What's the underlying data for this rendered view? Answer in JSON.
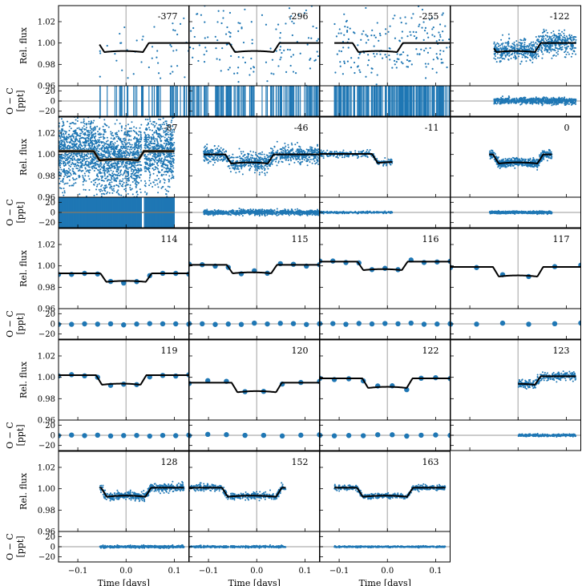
{
  "figure": {
    "x_axis_label": "Time [days]",
    "flux_axis_label": "Rel. flux",
    "resid_axis_label_line1": "O − C",
    "resid_axis_label_line2": "[ppt]",
    "colors": {
      "data": "#1f77b4",
      "model": "#000000",
      "refline": "#bbbbbb",
      "frame": "#000000"
    }
  },
  "chart_data": {
    "type": "scatter",
    "xlabel": "Time [days]",
    "ylabel_flux": "Rel. flux",
    "ylabel_resid": "O − C [ppt]",
    "xlim": [
      -0.14,
      0.13
    ],
    "ylim_flux": [
      0.96,
      1.035
    ],
    "ylim_resid": [
      -30,
      30
    ],
    "x_ticks": [
      -0.1,
      0.0,
      0.1
    ],
    "x_tick_labels": [
      "−0.1",
      "0.0",
      "0.1"
    ],
    "flux_ticks": [
      0.96,
      0.98,
      1.0,
      1.02
    ],
    "flux_tick_labels": [
      "0.96",
      "0.98",
      "1.00",
      "1.02"
    ],
    "resid_ticks": [
      -20,
      0,
      20
    ],
    "resid_tick_labels": [
      "−20",
      "0",
      "20"
    ],
    "grid": false,
    "panels": [
      {
        "epoch": "-377",
        "tmin": -0.055,
        "tmax": 0.13,
        "depth": 0.0085,
        "center": -0.005,
        "half": 0.052,
        "offset": 0,
        "noise": 0.018,
        "n": 45,
        "kind": "sparse"
      },
      {
        "epoch": "-296",
        "tmin": -0.14,
        "tmax": 0.13,
        "depth": 0.0085,
        "center": -0.005,
        "half": 0.052,
        "offset": 0,
        "noise": 0.018,
        "n": 130,
        "kind": "sparse"
      },
      {
        "epoch": "-255",
        "tmin": -0.11,
        "tmax": 0.13,
        "depth": 0.0085,
        "center": -0.02,
        "half": 0.052,
        "offset": 0,
        "noise": 0.018,
        "n": 200,
        "kind": "sparse",
        "slope": 0.09
      },
      {
        "epoch": "-122",
        "tmin": -0.05,
        "tmax": 0.12,
        "depth": 0.0085,
        "center": -0.005,
        "half": 0.052,
        "offset": 0,
        "noise": 0.005,
        "n": 700,
        "kind": "dense"
      },
      {
        "epoch": "-87",
        "tmin": -0.14,
        "tmax": 0.1,
        "depth": 0.0085,
        "center": -0.015,
        "half": 0.052,
        "offset": 0.003,
        "noise": 0.016,
        "n": 2600,
        "kind": "huge",
        "gap": 0.035
      },
      {
        "epoch": "-46",
        "tmin": -0.11,
        "tmax": 0.13,
        "depth": 0.0085,
        "center": -0.015,
        "half": 0.05,
        "offset": 0,
        "noise": 0.004,
        "n": 900,
        "kind": "dense"
      },
      {
        "epoch": "-11",
        "tmin": -0.14,
        "tmax": 0.01,
        "depth": 0.0085,
        "center": 0.02,
        "half": 0.052,
        "offset": 0.0005,
        "noise": 0.0015,
        "n": 260,
        "kind": "dense"
      },
      {
        "epoch": "0",
        "tmin": -0.06,
        "tmax": 0.07,
        "depth": 0.0085,
        "center": 0.0,
        "half": 0.052,
        "offset": 0,
        "noise": 0.002,
        "n": 600,
        "kind": "dense"
      },
      {
        "epoch": "114",
        "tmin": -0.14,
        "tmax": 0.13,
        "depth": 0.008,
        "center": 0.0,
        "half": 0.053,
        "offset": -0.007,
        "noise": 0.0008,
        "n": 11,
        "kind": "binned"
      },
      {
        "epoch": "115",
        "tmin": -0.14,
        "tmax": 0.13,
        "depth": 0.008,
        "center": -0.01,
        "half": 0.052,
        "offset": 0.001,
        "noise": 0.0008,
        "n": 11,
        "kind": "binned"
      },
      {
        "epoch": "116",
        "tmin": -0.14,
        "tmax": 0.13,
        "depth": 0.008,
        "center": -0.01,
        "half": 0.052,
        "offset": 0.004,
        "noise": 0.0008,
        "n": 11,
        "kind": "binned"
      },
      {
        "epoch": "117",
        "tmin": -0.14,
        "tmax": 0.13,
        "depth": 0.009,
        "center": 0.0,
        "half": 0.052,
        "offset": -0.001,
        "noise": 0.0008,
        "n": 6,
        "kind": "binned"
      },
      {
        "epoch": "119",
        "tmin": -0.14,
        "tmax": 0.13,
        "depth": 0.009,
        "center": -0.01,
        "half": 0.052,
        "offset": 0.002,
        "noise": 0.0008,
        "n": 11,
        "kind": "binned"
      },
      {
        "epoch": "120",
        "tmin": -0.14,
        "tmax": 0.13,
        "depth": 0.009,
        "center": 0.0,
        "half": 0.052,
        "offset": -0.005,
        "noise": 0.0008,
        "n": 8,
        "kind": "binned"
      },
      {
        "epoch": "122",
        "tmin": -0.14,
        "tmax": 0.13,
        "depth": 0.009,
        "center": 0.0,
        "half": 0.052,
        "offset": -0.001,
        "noise": 0.0008,
        "n": 10,
        "kind": "binned"
      },
      {
        "epoch": "123",
        "tmin": 0.0,
        "tmax": 0.12,
        "depth": 0.008,
        "center": -0.005,
        "half": 0.052,
        "offset": 0.001,
        "noise": 0.002,
        "n": 300,
        "kind": "dense"
      },
      {
        "epoch": "128",
        "tmin": -0.055,
        "tmax": 0.12,
        "depth": 0.0085,
        "center": 0.0,
        "half": 0.052,
        "offset": 0.001,
        "noise": 0.002,
        "n": 500,
        "kind": "dense"
      },
      {
        "epoch": "152",
        "tmin": -0.14,
        "tmax": 0.06,
        "depth": 0.0085,
        "center": -0.01,
        "half": 0.062,
        "offset": 0.001,
        "noise": 0.0015,
        "n": 450,
        "kind": "dense"
      },
      {
        "epoch": "163",
        "tmin": -0.11,
        "tmax": 0.12,
        "depth": 0.0085,
        "center": -0.005,
        "half": 0.058,
        "offset": 0.001,
        "noise": 0.0012,
        "n": 500,
        "kind": "dense"
      }
    ]
  }
}
